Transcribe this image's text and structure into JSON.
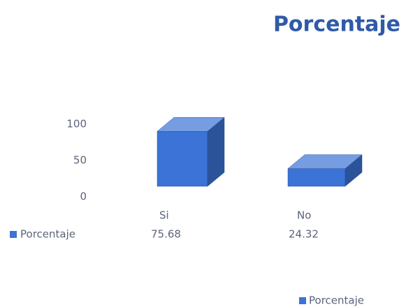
{
  "chart_data": {
    "type": "bar3d",
    "title": "Porcentaje",
    "categories": [
      "Si",
      "No"
    ],
    "series": [
      {
        "name": "Porcentaje",
        "color": "#3b73d6",
        "values": [
          75.68,
          24.32
        ]
      }
    ],
    "ylim": [
      0,
      100
    ],
    "yticks": [
      0,
      50,
      100
    ],
    "grid": false,
    "legend": "bottom-right",
    "data_table": true
  }
}
